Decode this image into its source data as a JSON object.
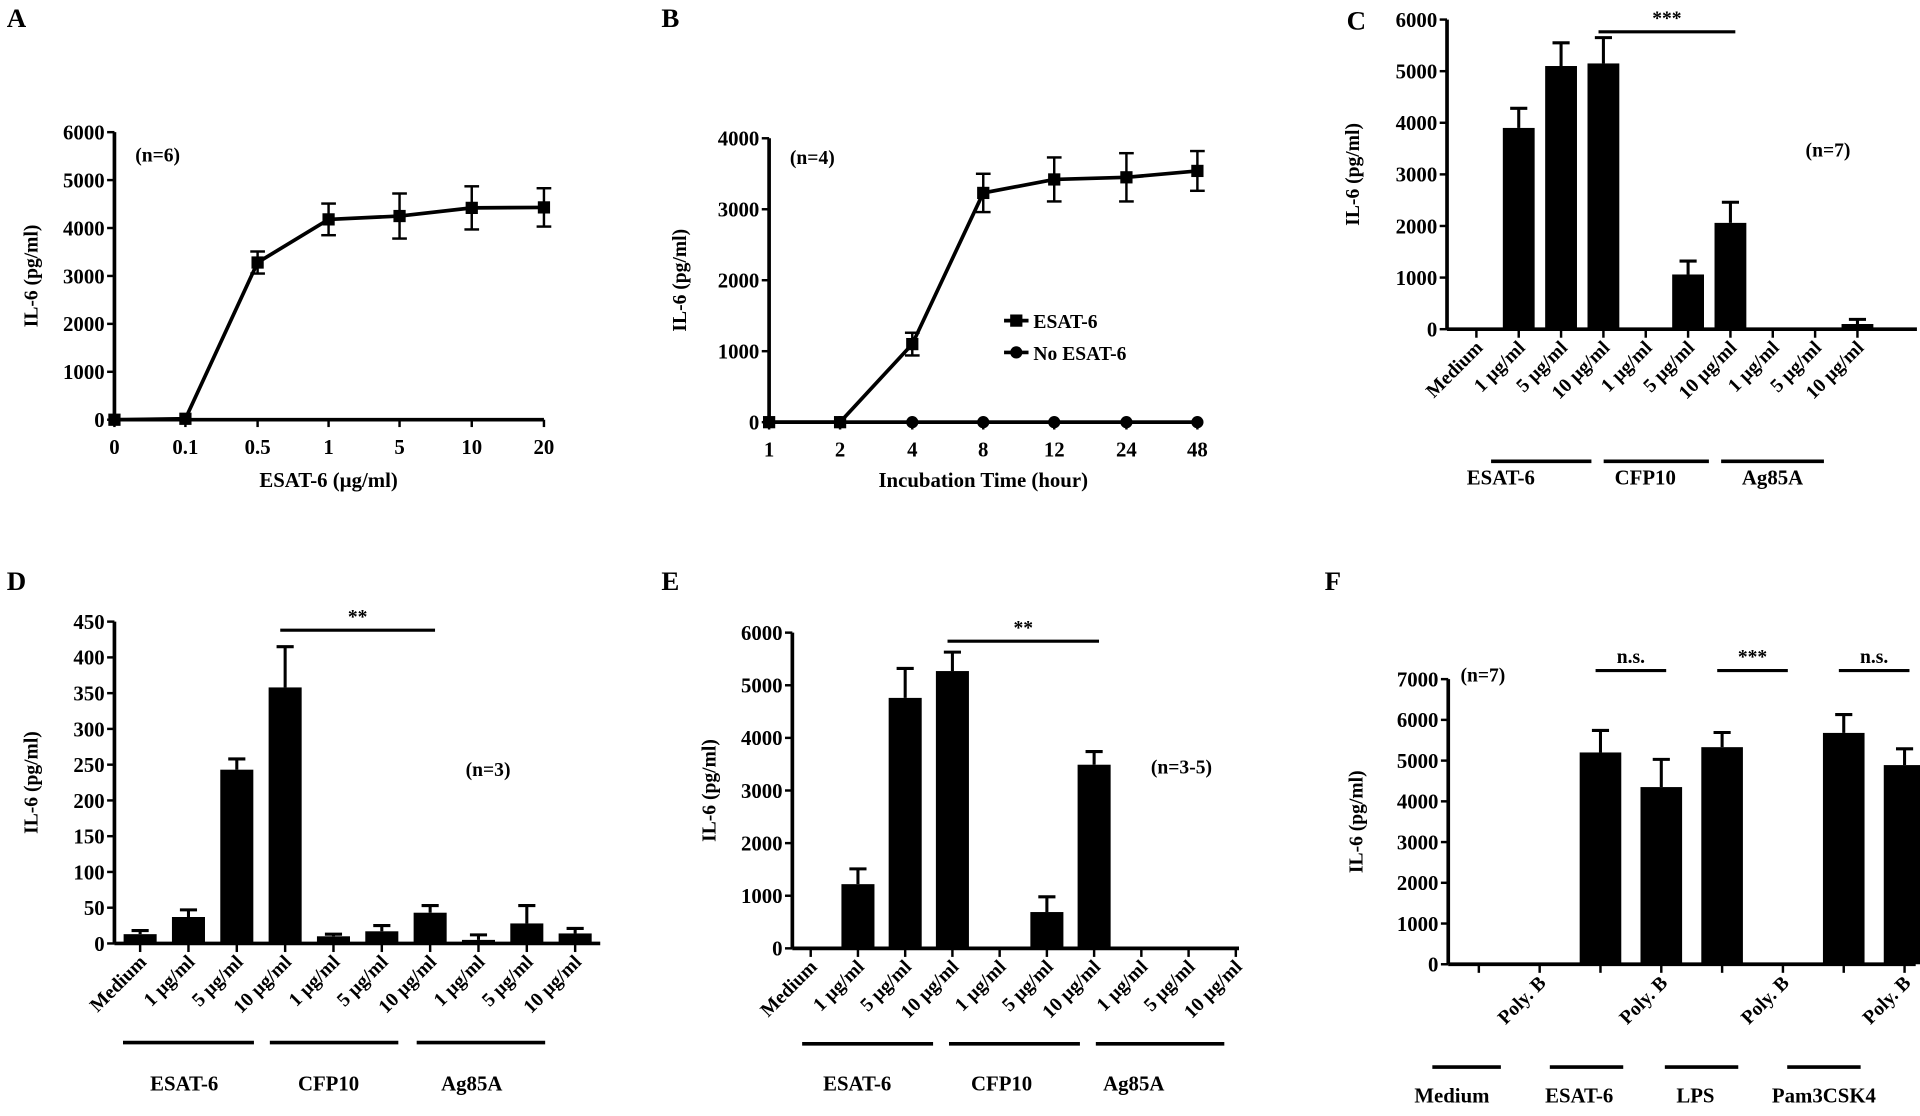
{
  "colors": {
    "ink": "#000000",
    "background": "#ffffff"
  },
  "chart_data": [
    {
      "panel": "A",
      "type": "line",
      "ylabel": "IL-6 (pg/ml)",
      "xlabel": "ESAT-6 (µg/ml)",
      "annotation": "(n=6)",
      "categories": [
        "0",
        "0.1",
        "0.5",
        "1",
        "5",
        "10",
        "20"
      ],
      "ylim": [
        0,
        6000
      ],
      "yticks": [
        0,
        1000,
        2000,
        3000,
        4000,
        5000,
        6000
      ],
      "series": [
        {
          "marker": "square",
          "values": [
            0,
            20,
            3280,
            4180,
            4250,
            4420,
            4430
          ],
          "errors": [
            0,
            0,
            230,
            330,
            470,
            450,
            400
          ]
        }
      ]
    },
    {
      "panel": "B",
      "type": "line",
      "ylabel": "IL-6 (pg/ml)",
      "xlabel": "Incubation Time (hour)",
      "annotation": "(n=4)",
      "categories": [
        "1",
        "2",
        "4",
        "8",
        "12",
        "24",
        "48"
      ],
      "ylim": [
        0,
        4000
      ],
      "yticks": [
        0,
        1000,
        2000,
        3000,
        4000
      ],
      "legend_position": "center-right",
      "series": [
        {
          "name": "ESAT-6",
          "marker": "square",
          "values": [
            0,
            0,
            1100,
            3230,
            3420,
            3450,
            3540
          ],
          "errors": [
            0,
            0,
            160,
            270,
            310,
            340,
            280
          ]
        },
        {
          "name": "No ESAT-6",
          "marker": "circle",
          "values": [
            0,
            0,
            0,
            0,
            0,
            0,
            0
          ],
          "errors": [
            0,
            0,
            0,
            0,
            0,
            0,
            0
          ]
        }
      ]
    },
    {
      "panel": "C",
      "type": "bar",
      "ylabel": "IL-6 (pg/ml)",
      "annotation": "(n=7)",
      "categories": [
        "Medium",
        "1 µg/ml",
        "5 µg/ml",
        "10 µg/ml",
        "1 µg/ml",
        "5 µg/ml",
        "10 µg/ml",
        "1 µg/ml",
        "5 µg/ml",
        "10 µg/ml"
      ],
      "groups": [
        {
          "label": "ESAT-6"
        },
        {
          "label": "CFP10"
        },
        {
          "label": "Ag85A"
        }
      ],
      "ylim": [
        0,
        6000
      ],
      "yticks": [
        0,
        1000,
        2000,
        3000,
        4000,
        5000,
        6000
      ],
      "values": [
        0,
        3900,
        5100,
        5150,
        30,
        1060,
        2060,
        0,
        0,
        100
      ],
      "errors": [
        0,
        380,
        450,
        500,
        0,
        260,
        400,
        0,
        0,
        90
      ],
      "significance": [
        {
          "from": 3,
          "to": 6,
          "label": "***"
        }
      ]
    },
    {
      "panel": "D",
      "type": "bar",
      "ylabel": "IL-6 (pg/ml)",
      "annotation": "(n=3)",
      "categories": [
        "Medium",
        "1 µg/ml",
        "5 µg/ml",
        "10 µg/ml",
        "1 µg/ml",
        "5 µg/ml",
        "10 µg/ml",
        "1 µg/ml",
        "5 µg/ml",
        "10 µg/ml"
      ],
      "groups": [
        {
          "label": "ESAT-6"
        },
        {
          "label": "CFP10"
        },
        {
          "label": "Ag85A"
        }
      ],
      "ylim": [
        0,
        450
      ],
      "yticks": [
        0,
        50,
        100,
        150,
        200,
        250,
        300,
        350,
        400,
        450
      ],
      "values": [
        13,
        37,
        243,
        358,
        10,
        17,
        43,
        5,
        28,
        14
      ],
      "errors": [
        5,
        10,
        15,
        57,
        3,
        8,
        10,
        7,
        25,
        7
      ],
      "significance": [
        {
          "from": 3,
          "to": 6,
          "label": "**"
        }
      ]
    },
    {
      "panel": "E",
      "type": "bar",
      "ylabel": "IL-6 (pg/ml)",
      "annotation": "(n=3-5)",
      "categories": [
        "Medium",
        "1 µg/ml",
        "5 µg/ml",
        "10 µg/ml",
        "1 µg/ml",
        "5 µg/ml",
        "10 µg/ml",
        "1 µg/ml",
        "5 µg/ml",
        "10 µg/ml"
      ],
      "groups": [
        {
          "label": "ESAT-6"
        },
        {
          "label": "CFP10"
        },
        {
          "label": "Ag85A"
        }
      ],
      "ylim": [
        0,
        6000
      ],
      "yticks": [
        0,
        1000,
        2000,
        3000,
        4000,
        5000,
        6000
      ],
      "values": [
        0,
        1220,
        4760,
        5270,
        0,
        690,
        3490,
        0,
        0,
        0
      ],
      "errors": [
        0,
        290,
        560,
        360,
        0,
        290,
        250,
        0,
        0,
        0
      ],
      "significance": [
        {
          "from": 3,
          "to": 6,
          "label": "**"
        }
      ]
    },
    {
      "panel": "F",
      "type": "bar",
      "ylabel": "IL-6 (pg/ml)",
      "annotation": "(n=7)",
      "categories": [
        "",
        "Poly. B",
        "",
        "Poly. B",
        "",
        "Poly. B",
        "",
        "Poly. B"
      ],
      "groups": [
        {
          "label": "Medium"
        },
        {
          "label": "ESAT-6"
        },
        {
          "label": "LPS"
        },
        {
          "label": "Pam3CSK4"
        }
      ],
      "ylim": [
        0,
        7000
      ],
      "yticks": [
        0,
        1000,
        2000,
        3000,
        4000,
        5000,
        6000,
        7000
      ],
      "values": [
        0,
        0,
        5200,
        4350,
        5330,
        30,
        5680,
        4890
      ],
      "errors": [
        0,
        0,
        540,
        680,
        360,
        0,
        450,
        400
      ],
      "significance": [
        {
          "from": 2,
          "to": 3,
          "label": "n.s."
        },
        {
          "from": 4,
          "to": 5,
          "label": "***"
        },
        {
          "from": 6,
          "to": 7,
          "label": "n.s."
        }
      ]
    }
  ]
}
